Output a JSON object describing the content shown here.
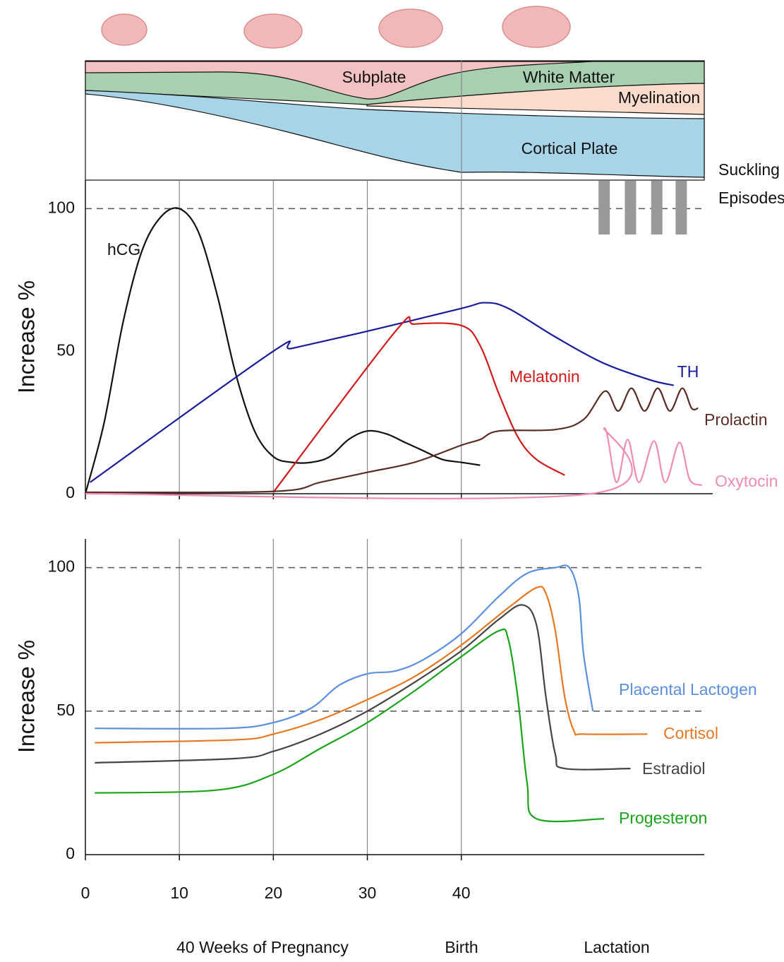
{
  "diagram": {
    "labels": [
      "Subplate",
      "White Matter",
      "Myelination",
      "Cortical Plate"
    ]
  },
  "chart_data": [
    {
      "type": "line",
      "y_label": "Increase %",
      "xlim": [
        0,
        66
      ],
      "xticks": [
        0,
        10,
        20,
        30,
        40
      ],
      "ylim": [
        0,
        110
      ],
      "yticks": [
        0,
        50,
        100
      ],
      "grid": true,
      "reference_lines": [
        100
      ],
      "suckling_episodes": {
        "label": [
          "Suckling",
          "Episodes"
        ],
        "x": [
          55.2,
          58,
          60.8,
          63.4
        ],
        "color": "#999999"
      },
      "series": [
        {
          "name": "hCG",
          "color": "#111111",
          "x": [
            0,
            2,
            4,
            6,
            8,
            10,
            12,
            14,
            16,
            18,
            20,
            22,
            24,
            26,
            28,
            30,
            32,
            34,
            36,
            38,
            40,
            42
          ],
          "values": [
            0,
            25,
            60,
            85,
            97,
            100,
            92,
            70,
            42,
            22,
            13,
            11,
            11,
            13,
            19,
            22,
            21,
            18,
            15,
            12,
            11,
            10
          ]
        },
        {
          "name": "TH",
          "color": "#1a1a9c",
          "x": [
            0.5,
            20,
            22,
            30,
            40,
            42.5,
            45,
            50,
            55,
            60,
            62.6
          ],
          "values": [
            4,
            50,
            51,
            57,
            65,
            67,
            65,
            55,
            46,
            40,
            38
          ]
        },
        {
          "name": "Melatonin",
          "color": "#d11a1a",
          "x": [
            20,
            33,
            35,
            40,
            42,
            44,
            46,
            48,
            51
          ],
          "values": [
            0.5,
            57,
            59.5,
            59,
            52,
            35,
            20,
            12,
            6.5
          ]
        },
        {
          "name": "Prolactin",
          "color": "#5a2d27",
          "x": [
            0,
            20,
            25,
            30,
            35,
            40,
            42,
            44,
            50,
            53,
            55.3,
            56.7,
            58.1,
            59.5,
            60.9,
            62.2,
            63.5,
            64.5,
            65.2
          ],
          "values": [
            0.5,
            0.8,
            4,
            7.5,
            11,
            17,
            19,
            22,
            22.5,
            26,
            36,
            29,
            37,
            29,
            37,
            29,
            37,
            30,
            30
          ]
        },
        {
          "name": "Oxytocin",
          "color": "#f08cb0",
          "x": [
            0,
            53.8,
            55.2,
            56.5,
            57.7,
            58.9,
            60.5,
            61.7,
            63.2,
            64.3,
            65.6
          ],
          "values": [
            0,
            0,
            23,
            4,
            19,
            4,
            18.5,
            4,
            18,
            5,
            3
          ]
        }
      ]
    },
    {
      "type": "line",
      "y_label": "Increase %",
      "xlim": [
        0,
        66
      ],
      "xticks": [
        0,
        10,
        20,
        30,
        40
      ],
      "ylim": [
        0,
        110
      ],
      "yticks": [
        0,
        50,
        100
      ],
      "grid": true,
      "reference_lines": [
        100,
        50
      ],
      "period_labels": [
        "40 Weeks of Pregnancy",
        "Birth",
        "Lactation"
      ],
      "series": [
        {
          "name": "Placental Lactogen",
          "color": "#5b8fe0",
          "x": [
            1,
            15,
            20,
            24,
            27,
            30,
            33,
            36,
            40,
            44,
            47,
            50,
            51.5,
            52.5,
            53,
            54
          ],
          "values": [
            44,
            44,
            46,
            51,
            59,
            63,
            64,
            68,
            77,
            90,
            98,
            100,
            100,
            90,
            70,
            50
          ]
        },
        {
          "name": "Cortisol",
          "color": "#e87722",
          "x": [
            1,
            16,
            20,
            25,
            30,
            35,
            40,
            45,
            48,
            49,
            50,
            51,
            52,
            53,
            59.8
          ],
          "values": [
            39,
            40,
            42,
            47,
            54,
            62,
            73,
            86,
            93,
            91,
            78,
            55,
            43,
            42,
            42
          ]
        },
        {
          "name": "Estradiol",
          "color": "#444444",
          "x": [
            1,
            16,
            20,
            25,
            30,
            35,
            40,
            44,
            46.5,
            48,
            49,
            50,
            51,
            58
          ],
          "values": [
            32,
            33.5,
            36,
            42,
            50,
            60,
            71,
            82,
            87,
            80,
            55,
            35,
            30,
            30
          ]
        },
        {
          "name": "Progesteron",
          "color": "#1aa41a",
          "x": [
            1,
            14,
            20,
            25,
            30,
            35,
            40,
            44,
            45,
            46,
            47,
            48,
            55.2
          ],
          "values": [
            21.5,
            22.5,
            28,
            37,
            46,
            57,
            69,
            78,
            75,
            55,
            25,
            12.5,
            12.5
          ]
        }
      ]
    }
  ]
}
